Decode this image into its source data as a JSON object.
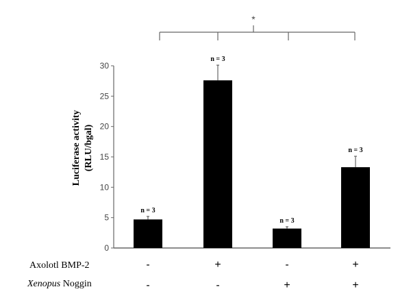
{
  "chart_data": {
    "type": "bar",
    "title": "",
    "xlabel": "",
    "ylabel": "Luciferase activity (RLU/bgal)",
    "ylabel_lines": [
      "Luciferase activity",
      "(RLU/bgal)"
    ],
    "ylim": [
      0,
      30
    ],
    "yticks": [
      0,
      5,
      10,
      15,
      20,
      25,
      30
    ],
    "grid": false,
    "categories": [
      "BMP-2 −/Noggin −",
      "BMP-2 +/Noggin −",
      "BMP-2 −/Noggin +",
      "BMP-2 +/Noggin +"
    ],
    "values": [
      4.7,
      27.6,
      3.2,
      13.3
    ],
    "error_plus": [
      0.5,
      2.5,
      0.3,
      1.8
    ],
    "bar_color": "#000000",
    "annotations": [
      "n = 3",
      "n = 3",
      "n = 3",
      "n = 3"
    ],
    "significance": {
      "symbol": "*",
      "groups": [
        0,
        1,
        2,
        3
      ]
    },
    "condition_rows": [
      {
        "label": "Axolotl BMP-2",
        "italic_part": "",
        "signs": [
          "-",
          "+",
          "-",
          "+"
        ]
      },
      {
        "label": "Noggin",
        "italic_part": "Xenopus",
        "signs": [
          "-",
          "-",
          "+",
          "+"
        ]
      }
    ]
  }
}
